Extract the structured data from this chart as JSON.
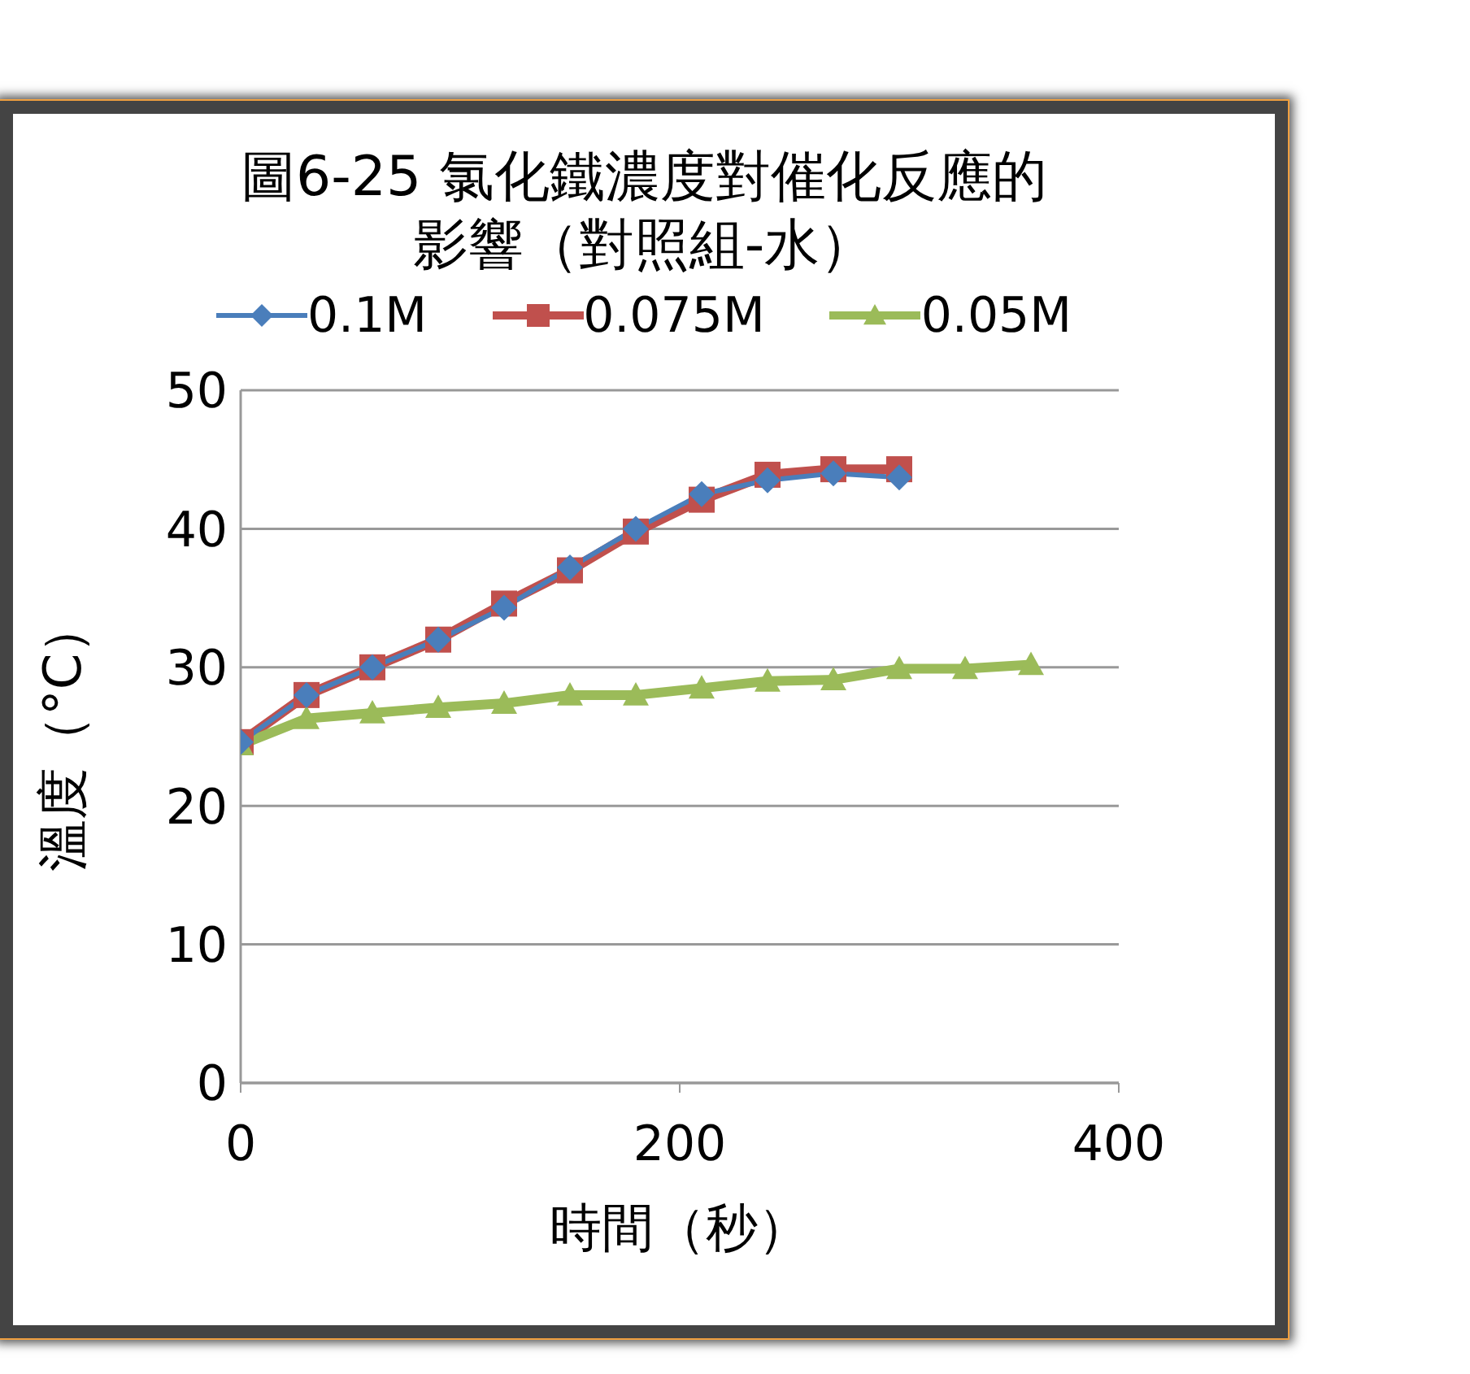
{
  "chart_data": {
    "type": "line",
    "title": "圖6-25 氯化鐵濃度對催化反應的影響（對照組-水）",
    "xlabel": "時間（秒）",
    "ylabel": "溫度（°C）",
    "x": [
      0,
      30,
      60,
      90,
      120,
      150,
      180,
      210,
      240,
      270,
      300,
      330,
      360
    ],
    "series": [
      {
        "name": "0.1M",
        "color": "#4a7ebb",
        "marker": "diamond",
        "values": [
          24.6,
          28,
          30,
          32,
          34.3,
          37.2,
          40,
          42.5,
          43.5,
          44,
          43.7,
          null,
          null
        ]
      },
      {
        "name": "0.075M",
        "color": "#c0504d",
        "marker": "square",
        "values": [
          24.6,
          28,
          30,
          32,
          34.6,
          37,
          39.8,
          42.1,
          43.9,
          44.3,
          44.3,
          null,
          null
        ]
      },
      {
        "name": "0.05M",
        "color": "#9bbb59",
        "marker": "triangle",
        "values": [
          24.4,
          26.3,
          26.7,
          27.1,
          27.4,
          28,
          28,
          28.5,
          29,
          29.1,
          29.9,
          29.9,
          30.2
        ]
      }
    ],
    "xlim": [
      0,
      400
    ],
    "xticks": [
      0,
      200,
      400
    ],
    "ylim": [
      0,
      50
    ],
    "yticks": [
      0,
      10,
      20,
      30,
      40,
      50
    ],
    "grid": "y",
    "legend": "top"
  }
}
